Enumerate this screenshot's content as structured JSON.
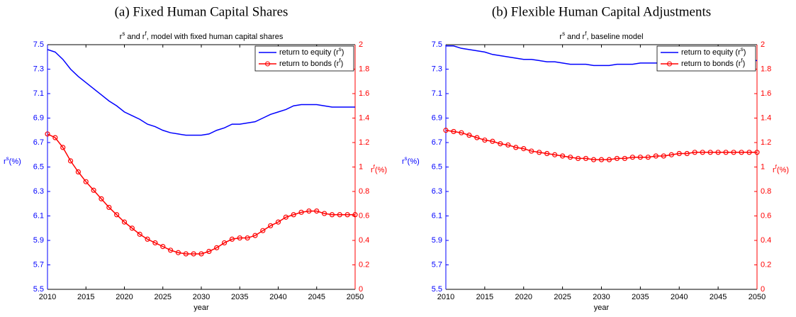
{
  "chart_data": [
    {
      "type": "line",
      "caption": "(a) Fixed Human Capital Shares",
      "title": [
        "r",
        "s",
        " and r",
        "f",
        ", model with fixed human capital shares"
      ],
      "xlabel": "year",
      "ylabel": [
        "r",
        "s",
        "(%)"
      ],
      "y2label": [
        "r",
        "f",
        "(%)"
      ],
      "x": [
        2010,
        2011,
        2012,
        2013,
        2014,
        2015,
        2016,
        2017,
        2018,
        2019,
        2020,
        2021,
        2022,
        2023,
        2024,
        2025,
        2026,
        2027,
        2028,
        2029,
        2030,
        2031,
        2032,
        2033,
        2034,
        2035,
        2036,
        2037,
        2038,
        2039,
        2040,
        2041,
        2042,
        2043,
        2044,
        2045,
        2046,
        2047,
        2048,
        2049,
        2050
      ],
      "xlim": [
        2010,
        2050
      ],
      "xticks": [
        2010,
        2015,
        2020,
        2025,
        2030,
        2035,
        2040,
        2045,
        2050
      ],
      "ylim": [
        5.5,
        7.5
      ],
      "yticks": [
        5.5,
        5.7,
        5.9,
        6.1,
        6.3,
        6.5,
        6.7,
        6.9,
        7.1,
        7.3,
        7.5
      ],
      "y2lim": [
        0,
        2
      ],
      "y2ticks": [
        0,
        0.2,
        0.4,
        0.6,
        0.8,
        1,
        1.2,
        1.4,
        1.6,
        1.8,
        2
      ],
      "legend": "upper right",
      "series": [
        {
          "name": [
            "return to equity (r",
            "s",
            ")"
          ],
          "color": "#0000ff",
          "marker": "none",
          "values": [
            7.46,
            7.44,
            7.38,
            7.3,
            7.24,
            7.19,
            7.14,
            7.09,
            7.04,
            7.0,
            6.95,
            6.92,
            6.89,
            6.85,
            6.83,
            6.8,
            6.78,
            6.77,
            6.76,
            6.76,
            6.76,
            6.77,
            6.8,
            6.82,
            6.85,
            6.85,
            6.86,
            6.87,
            6.9,
            6.93,
            6.95,
            6.97,
            7.0,
            7.01,
            7.01,
            7.01,
            7.0,
            6.99,
            6.99,
            6.99,
            6.99
          ]
        },
        {
          "name": [
            "return to bonds (r",
            "f",
            ")"
          ],
          "color": "#ff0000",
          "marker": "circle",
          "axis": "y2",
          "values": [
            1.27,
            1.24,
            1.16,
            1.05,
            0.96,
            0.88,
            0.81,
            0.74,
            0.67,
            0.61,
            0.55,
            0.5,
            0.45,
            0.41,
            0.38,
            0.35,
            0.32,
            0.3,
            0.29,
            0.29,
            0.29,
            0.31,
            0.34,
            0.38,
            0.41,
            0.42,
            0.42,
            0.44,
            0.48,
            0.52,
            0.55,
            0.59,
            0.61,
            0.63,
            0.64,
            0.64,
            0.62,
            0.61,
            0.61,
            0.61,
            0.61
          ]
        }
      ]
    },
    {
      "type": "line",
      "caption": "(b) Flexible Human Capital Adjustments",
      "title": [
        "r",
        "s",
        " and r",
        "f",
        ", baseline model"
      ],
      "xlabel": "year",
      "ylabel": [
        "r",
        "s",
        "(%)"
      ],
      "y2label": [
        "r",
        "f",
        "(%)"
      ],
      "x": [
        2010,
        2011,
        2012,
        2013,
        2014,
        2015,
        2016,
        2017,
        2018,
        2019,
        2020,
        2021,
        2022,
        2023,
        2024,
        2025,
        2026,
        2027,
        2028,
        2029,
        2030,
        2031,
        2032,
        2033,
        2034,
        2035,
        2036,
        2037,
        2038,
        2039,
        2040,
        2041,
        2042,
        2043,
        2044,
        2045,
        2046,
        2047,
        2048,
        2049,
        2050
      ],
      "xlim": [
        2010,
        2050
      ],
      "xticks": [
        2010,
        2015,
        2020,
        2025,
        2030,
        2035,
        2040,
        2045,
        2050
      ],
      "ylim": [
        5.5,
        7.5
      ],
      "yticks": [
        5.5,
        5.7,
        5.9,
        6.1,
        6.3,
        6.5,
        6.7,
        6.9,
        7.1,
        7.3,
        7.5
      ],
      "y2lim": [
        0,
        2
      ],
      "y2ticks": [
        0,
        0.2,
        0.4,
        0.6,
        0.8,
        1,
        1.2,
        1.4,
        1.6,
        1.8,
        2
      ],
      "legend": "upper right",
      "series": [
        {
          "name": [
            "return to equity (r",
            "s",
            ")"
          ],
          "color": "#0000ff",
          "marker": "none",
          "values": [
            7.49,
            7.49,
            7.47,
            7.46,
            7.45,
            7.44,
            7.42,
            7.41,
            7.4,
            7.39,
            7.38,
            7.38,
            7.37,
            7.36,
            7.36,
            7.35,
            7.34,
            7.34,
            7.34,
            7.33,
            7.33,
            7.33,
            7.34,
            7.34,
            7.34,
            7.35,
            7.35,
            7.35,
            7.35,
            7.35,
            7.36,
            7.36,
            7.36,
            7.36,
            7.36,
            7.36,
            7.36,
            7.37,
            7.37,
            7.37,
            7.37
          ]
        },
        {
          "name": [
            "return to bonds (r",
            "f",
            ")"
          ],
          "color": "#ff0000",
          "marker": "circle",
          "axis": "y2",
          "values": [
            1.3,
            1.29,
            1.28,
            1.26,
            1.24,
            1.22,
            1.21,
            1.19,
            1.18,
            1.16,
            1.15,
            1.13,
            1.12,
            1.11,
            1.1,
            1.09,
            1.08,
            1.07,
            1.07,
            1.06,
            1.06,
            1.06,
            1.07,
            1.07,
            1.08,
            1.08,
            1.08,
            1.09,
            1.09,
            1.1,
            1.11,
            1.11,
            1.12,
            1.12,
            1.12,
            1.12,
            1.12,
            1.12,
            1.12,
            1.12,
            1.12
          ]
        }
      ]
    }
  ]
}
